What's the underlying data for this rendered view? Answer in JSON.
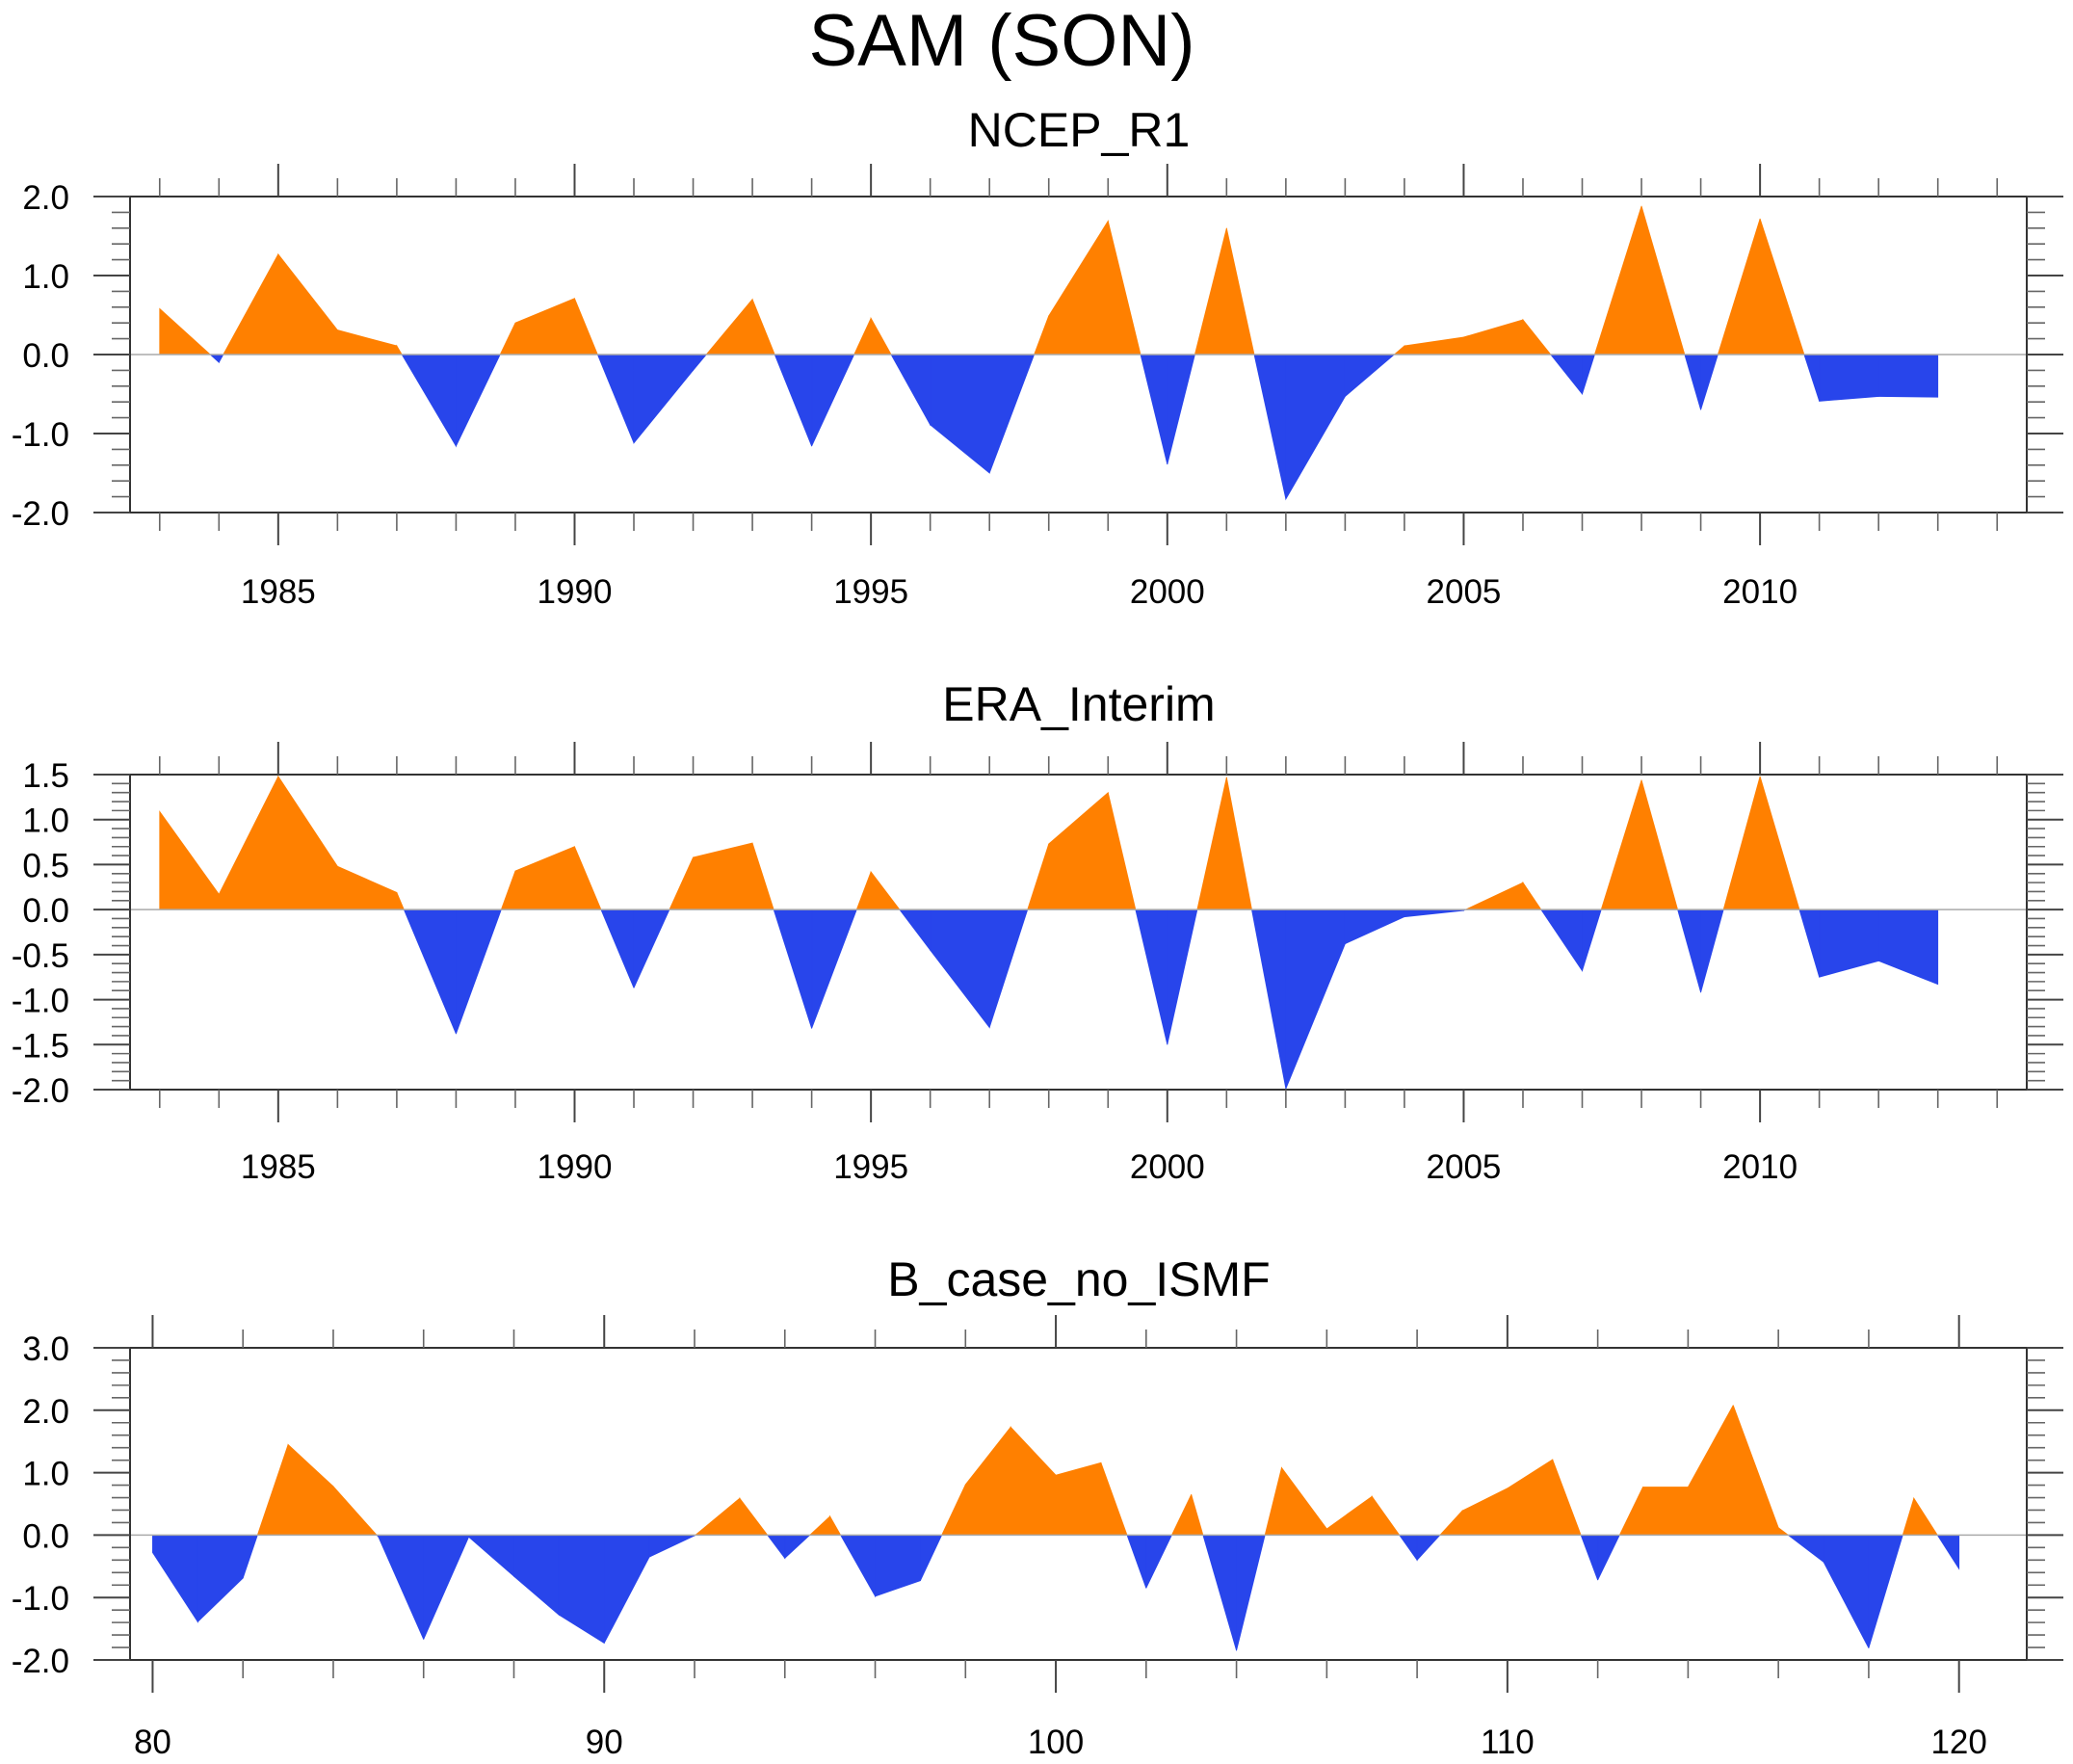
{
  "chart_data": [
    {
      "type": "area",
      "title": "NCEP_R1",
      "xlabel": "",
      "ylabel": "",
      "x": [
        1983,
        1984,
        1985,
        1986,
        1987,
        1988,
        1989,
        1990,
        1991,
        1992,
        1993,
        1994,
        1995,
        1996,
        1997,
        1998,
        1999,
        2000,
        2001,
        2002,
        2003,
        2004,
        2005,
        2006,
        2007,
        2008,
        2009,
        2010,
        2011,
        2012,
        2013
      ],
      "values": [
        0.58,
        -0.1,
        1.27,
        0.31,
        0.11,
        -1.16,
        0.4,
        0.71,
        -1.12,
        -0.2,
        0.7,
        -1.16,
        0.46,
        -0.89,
        -1.5,
        0.49,
        1.69,
        -1.39,
        1.6,
        -1.83,
        -0.53,
        0.11,
        0.22,
        0.44,
        -0.5,
        1.88,
        -0.7,
        1.72,
        -0.59,
        -0.53,
        -0.54
      ],
      "xlim": [
        1982.5,
        2014.5
      ],
      "ylim": [
        -2.0,
        2.0
      ],
      "x_major_ticks": [
        1985,
        1990,
        1995,
        2000,
        2005,
        2010
      ],
      "x_tick_labels": [
        "1985",
        "1990",
        "1995",
        "2000",
        "2005",
        "2010"
      ],
      "x_minor_step": 1,
      "y_major_ticks": [
        2.0,
        1.0,
        0.0,
        -1.0,
        -2.0
      ],
      "y_tick_labels": [
        "2.0",
        "1.0",
        "0.0",
        "-1.0",
        "-2.0"
      ],
      "y_minor_step": 0.2,
      "grid": false,
      "legend": "none"
    },
    {
      "type": "area",
      "title": "ERA_Interim",
      "xlabel": "",
      "ylabel": "",
      "x": [
        1983,
        1984,
        1985,
        1986,
        1987,
        1988,
        1989,
        1990,
        1991,
        1992,
        1993,
        1994,
        1995,
        1996,
        1997,
        1998,
        1999,
        2000,
        2001,
        2002,
        2003,
        2004,
        2005,
        2006,
        2007,
        2008,
        2009,
        2010,
        2011,
        2012,
        2013
      ],
      "values": [
        1.09,
        0.17,
        1.48,
        0.48,
        0.19,
        -1.38,
        0.43,
        0.7,
        -0.87,
        0.58,
        0.74,
        -1.32,
        0.42,
        -0.45,
        -1.31,
        0.73,
        1.3,
        -1.5,
        1.47,
        -1.99,
        -0.38,
        -0.08,
        -0.01,
        0.3,
        -0.68,
        1.44,
        -0.92,
        1.48,
        -0.75,
        -0.57,
        -0.83
      ],
      "xlim": [
        1982.5,
        2014.5
      ],
      "ylim": [
        -2.0,
        1.5
      ],
      "x_major_ticks": [
        1985,
        1990,
        1995,
        2000,
        2005,
        2010
      ],
      "x_tick_labels": [
        "1985",
        "1990",
        "1995",
        "2000",
        "2005",
        "2010"
      ],
      "x_minor_step": 1,
      "y_major_ticks": [
        1.5,
        1.0,
        0.5,
        0.0,
        -0.5,
        -1.0,
        -1.5,
        -2.0
      ],
      "y_tick_labels": [
        "1.5",
        "1.0",
        "0.5",
        "0.0",
        "-0.5",
        "-1.0",
        "-1.5",
        "-2.0"
      ],
      "y_minor_step": 0.1,
      "grid": false,
      "legend": "none"
    },
    {
      "type": "area",
      "title": "B_case_no_ISMF",
      "xlabel": "",
      "ylabel": "",
      "x": [
        80,
        81,
        82,
        83,
        84,
        85,
        86,
        87,
        88,
        89,
        90,
        91,
        92,
        93,
        94,
        95,
        96,
        97,
        98,
        99,
        100,
        101,
        102,
        103,
        104,
        105,
        106,
        107,
        108,
        109,
        110,
        111,
        112,
        113,
        114,
        115,
        116,
        117,
        118,
        119,
        120
      ],
      "values": [
        -0.28,
        -1.39,
        -0.69,
        1.45,
        0.78,
        -0.03,
        -1.67,
        -0.03,
        -0.66,
        -1.28,
        -1.73,
        -0.35,
        -0.01,
        0.59,
        -0.37,
        0.3,
        -0.98,
        -0.73,
        0.81,
        1.73,
        0.96,
        1.16,
        -0.85,
        0.65,
        -1.85,
        1.08,
        0.1,
        0.62,
        -0.4,
        0.39,
        0.75,
        1.21,
        -0.72,
        0.77,
        0.77,
        2.08,
        0.12,
        -0.43,
        -1.81,
        0.59,
        -0.54
      ],
      "xlim": [
        79.5,
        121.5
      ],
      "ylim": [
        -2.0,
        3.0
      ],
      "x_major_ticks": [
        80,
        90,
        100,
        110,
        120
      ],
      "x_tick_labels": [
        "80",
        "90",
        "100",
        "110",
        "120"
      ],
      "x_minor_step": 2,
      "y_major_ticks": [
        3.0,
        2.0,
        1.0,
        0.0,
        -1.0,
        -2.0
      ],
      "y_tick_labels": [
        "3.0",
        "2.0",
        "1.0",
        "0.0",
        "-1.0",
        "-2.0"
      ],
      "y_minor_step": 0.2,
      "grid": false,
      "legend": "none"
    }
  ],
  "figure": {
    "title": "SAM (SON)",
    "positive_color": "#ff8000",
    "negative_color": "#2845eb"
  }
}
